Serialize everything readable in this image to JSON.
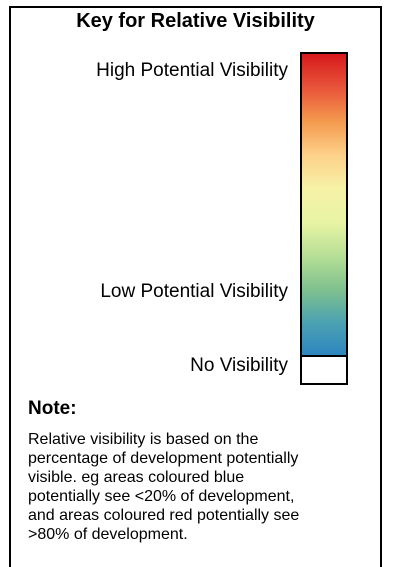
{
  "legend": {
    "title": "Key for Relative Visibility",
    "labels": {
      "high": "High Potential Visibility",
      "low": "Low Potential Visibility",
      "none": "No Visibility"
    },
    "gradient_colors": [
      "#d7191c",
      "#e8543a",
      "#f49a4e",
      "#fdd089",
      "#f6f2a6",
      "#e8f4a4",
      "#b6df96",
      "#7fc18e",
      "#4aa1b2",
      "#2c84c0"
    ],
    "no_visibility_color": "#ffffff",
    "border_color": "#000000"
  },
  "note": {
    "heading": "Note:",
    "lines": [
      "Relative visibility is based on the",
      "percentage of development potentially",
      "visible.  eg areas coloured blue",
      "potentially see <20% of development,",
      "and areas coloured red potentially see",
      ">80% of development."
    ]
  }
}
